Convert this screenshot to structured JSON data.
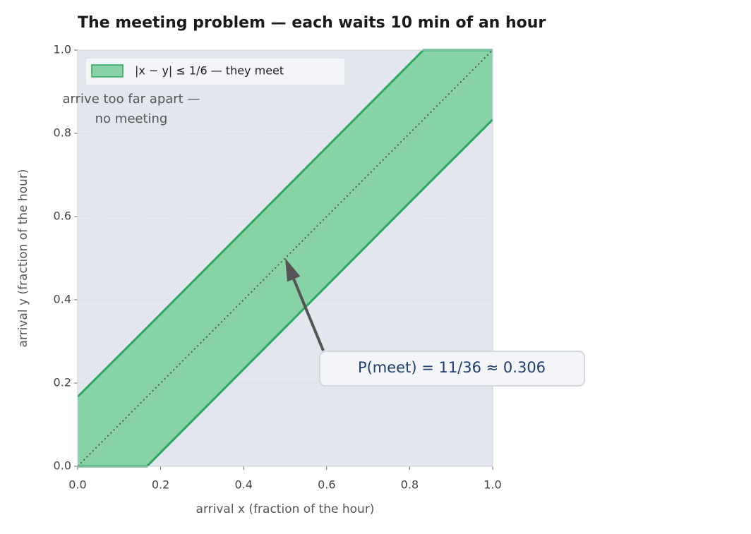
{
  "chart_data": {
    "type": "band",
    "title": "The meeting problem — each waits 10 min of an hour",
    "xlabel": "arrival x (fraction of the hour)",
    "ylabel": "arrival y (fraction of the hour)",
    "xlim": [
      0,
      1
    ],
    "ylim": [
      0,
      1
    ],
    "xticks": [
      {
        "value": 0,
        "label": "0.0"
      },
      0.2,
      0.4,
      0.6,
      0.8,
      {
        "value": 1,
        "label": "1.0"
      }
    ],
    "yticks": [
      {
        "value": 0,
        "label": "0.0"
      },
      0.2,
      0.4,
      0.6,
      0.8,
      {
        "value": 1,
        "label": "1.0"
      }
    ],
    "grid": true,
    "legend": "upper left",
    "series": [
      {
        "name": "|x − y| ≤ 1/6 — they meet",
        "color": "#2aa862",
        "fill": "#88d3a6",
        "x": [
          0,
          0.167,
          0.833,
          1
        ],
        "lower": [
          0,
          0,
          0.667,
          0.833
        ],
        "upper": [
          0.167,
          0.333,
          1,
          1
        ]
      }
    ],
    "reference_line": {
      "x": [
        0,
        1
      ],
      "y": [
        0,
        1
      ],
      "color": "#555555"
    },
    "note": [
      "arrive too far apart —",
      "no meeting"
    ],
    "annotation": {
      "text": "P(meet) = 11/36 ≈ 0.306",
      "xy": [
        0.5,
        0.5
      ]
    }
  }
}
